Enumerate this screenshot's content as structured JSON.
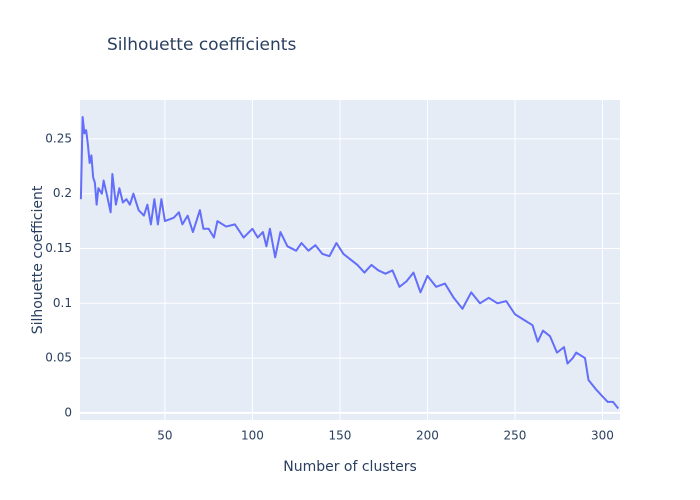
{
  "chart_data": {
    "type": "line",
    "title": "Silhouette coefficients",
    "x_label": "Number of clusters",
    "y_label": "Silhouette coefficient",
    "x": [
      2,
      3,
      4,
      5,
      6,
      7,
      8,
      9,
      10,
      11,
      12,
      14,
      15,
      17,
      19,
      20,
      22,
      24,
      26,
      28,
      30,
      32,
      35,
      38,
      40,
      42,
      44,
      46,
      48,
      50,
      55,
      58,
      60,
      63,
      66,
      70,
      72,
      75,
      78,
      80,
      85,
      90,
      95,
      100,
      103,
      106,
      108,
      110,
      113,
      116,
      120,
      125,
      128,
      132,
      136,
      140,
      144,
      148,
      152,
      156,
      160,
      164,
      168,
      172,
      176,
      180,
      184,
      188,
      192,
      196,
      200,
      205,
      210,
      215,
      220,
      225,
      230,
      235,
      240,
      245,
      250,
      255,
      260,
      263,
      266,
      270,
      274,
      278,
      280,
      283,
      285,
      290,
      292,
      296,
      300,
      303,
      306,
      309
    ],
    "series": [
      {
        "name": "Silhouette coefficient",
        "color": "#636efa",
        "values": [
          0.195,
          0.27,
          0.255,
          0.258,
          0.245,
          0.228,
          0.235,
          0.215,
          0.21,
          0.19,
          0.205,
          0.2,
          0.212,
          0.198,
          0.183,
          0.218,
          0.19,
          0.205,
          0.192,
          0.195,
          0.19,
          0.2,
          0.185,
          0.18,
          0.19,
          0.172,
          0.195,
          0.172,
          0.195,
          0.175,
          0.178,
          0.183,
          0.172,
          0.18,
          0.165,
          0.185,
          0.168,
          0.168,
          0.16,
          0.175,
          0.17,
          0.172,
          0.16,
          0.168,
          0.16,
          0.165,
          0.152,
          0.168,
          0.142,
          0.165,
          0.152,
          0.148,
          0.155,
          0.148,
          0.153,
          0.145,
          0.143,
          0.155,
          0.145,
          0.14,
          0.135,
          0.128,
          0.135,
          0.13,
          0.127,
          0.13,
          0.115,
          0.12,
          0.128,
          0.11,
          0.125,
          0.115,
          0.118,
          0.105,
          0.095,
          0.11,
          0.1,
          0.105,
          0.1,
          0.102,
          0.09,
          0.085,
          0.08,
          0.065,
          0.075,
          0.07,
          0.055,
          0.06,
          0.045,
          0.05,
          0.055,
          0.05,
          0.03,
          0.022,
          0.015,
          0.01,
          0.01,
          0.004
        ]
      }
    ],
    "xlim": [
      1.5,
      310
    ],
    "ylim": [
      -0.0065,
      0.2855
    ],
    "xticks": [
      50,
      100,
      150,
      200,
      250,
      300
    ],
    "yticks": [
      0,
      0.05,
      0.1,
      0.15,
      0.2,
      0.25
    ],
    "grid": true,
    "background": "#e5ecf6"
  }
}
